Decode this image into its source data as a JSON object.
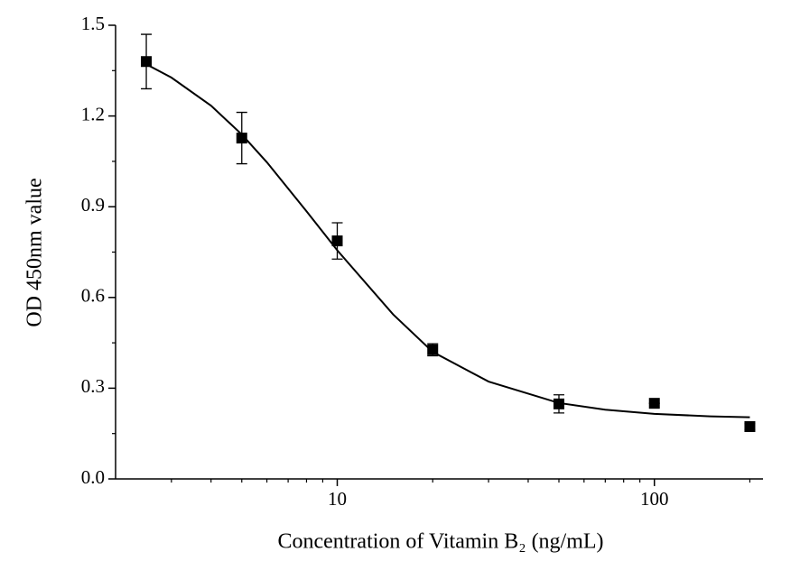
{
  "chart_data": {
    "type": "scatter",
    "xlabel": "Concentration of Vitamin B₂ (ng/mL)",
    "ylabel": "OD 450nm value",
    "xscale": "log",
    "xlim": [
      2,
      220
    ],
    "xticks": [
      10,
      100
    ],
    "xminorticks": [
      3,
      4,
      5,
      6,
      7,
      8,
      9,
      20,
      30,
      40,
      50,
      60,
      70,
      80,
      90,
      200
    ],
    "ylim": [
      0,
      1.5
    ],
    "yticks": [
      {
        "value": 0,
        "label": "0.0"
      },
      0.3,
      0.6,
      0.9,
      1.2,
      1.5
    ],
    "yminorticks": [
      0.15,
      0.45,
      0.75,
      1.05,
      1.35
    ],
    "series": [
      {
        "kind": "points",
        "color": "#000000",
        "x": [
          2.5,
          5,
          10,
          20,
          50,
          100,
          200
        ],
        "values": [
          1.38,
          1.127,
          0.787,
          0.427,
          0.248,
          0.25,
          0.173
        ],
        "errors": [
          0.09,
          0.085,
          0.06,
          0.02,
          0.03,
          0,
          0.01
        ]
      },
      {
        "kind": "line",
        "color": "#000000",
        "x": [
          2.5,
          3,
          4,
          5,
          6,
          8,
          10,
          15,
          20,
          30,
          50,
          70,
          100,
          150,
          200
        ],
        "values": [
          1.371,
          1.327,
          1.234,
          1.139,
          1.047,
          0.885,
          0.756,
          0.544,
          0.42,
          0.322,
          0.251,
          0.229,
          0.215,
          0.207,
          0.204
        ]
      }
    ]
  }
}
